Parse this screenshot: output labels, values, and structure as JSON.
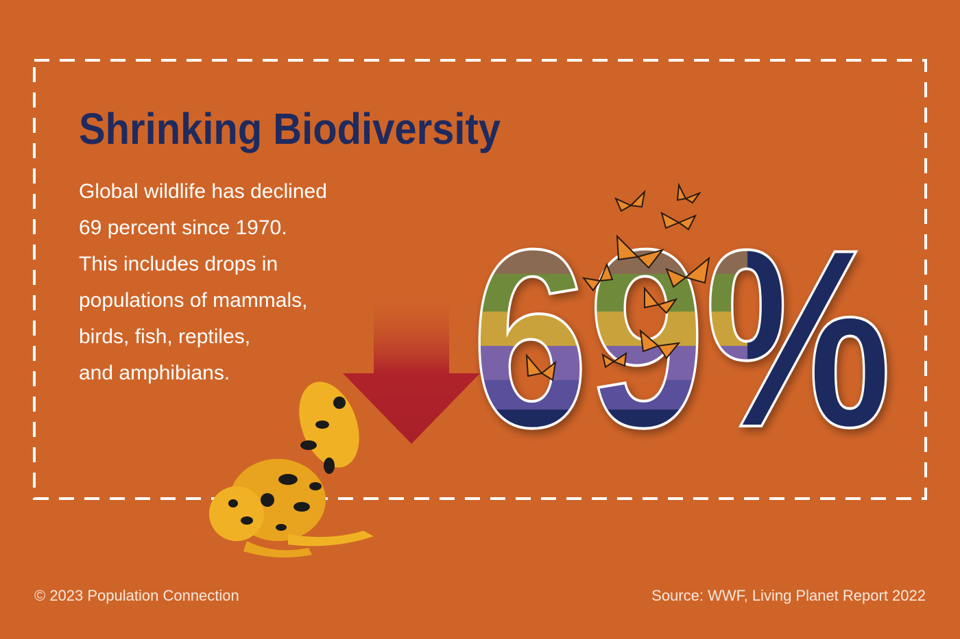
{
  "header": {
    "title": "Shrinking Biodiversity"
  },
  "body": {
    "lines": [
      "Global wildlife has declined",
      "69 percent since 1970.",
      "This includes drops in",
      "populations of mammals,",
      "birds, fish, reptiles,",
      "and amphibians."
    ]
  },
  "stat": {
    "value": "69%"
  },
  "footer": {
    "copyright": "© 2023 Population Connection",
    "source": "Source: WWF, Living Planet Report 2022"
  }
}
